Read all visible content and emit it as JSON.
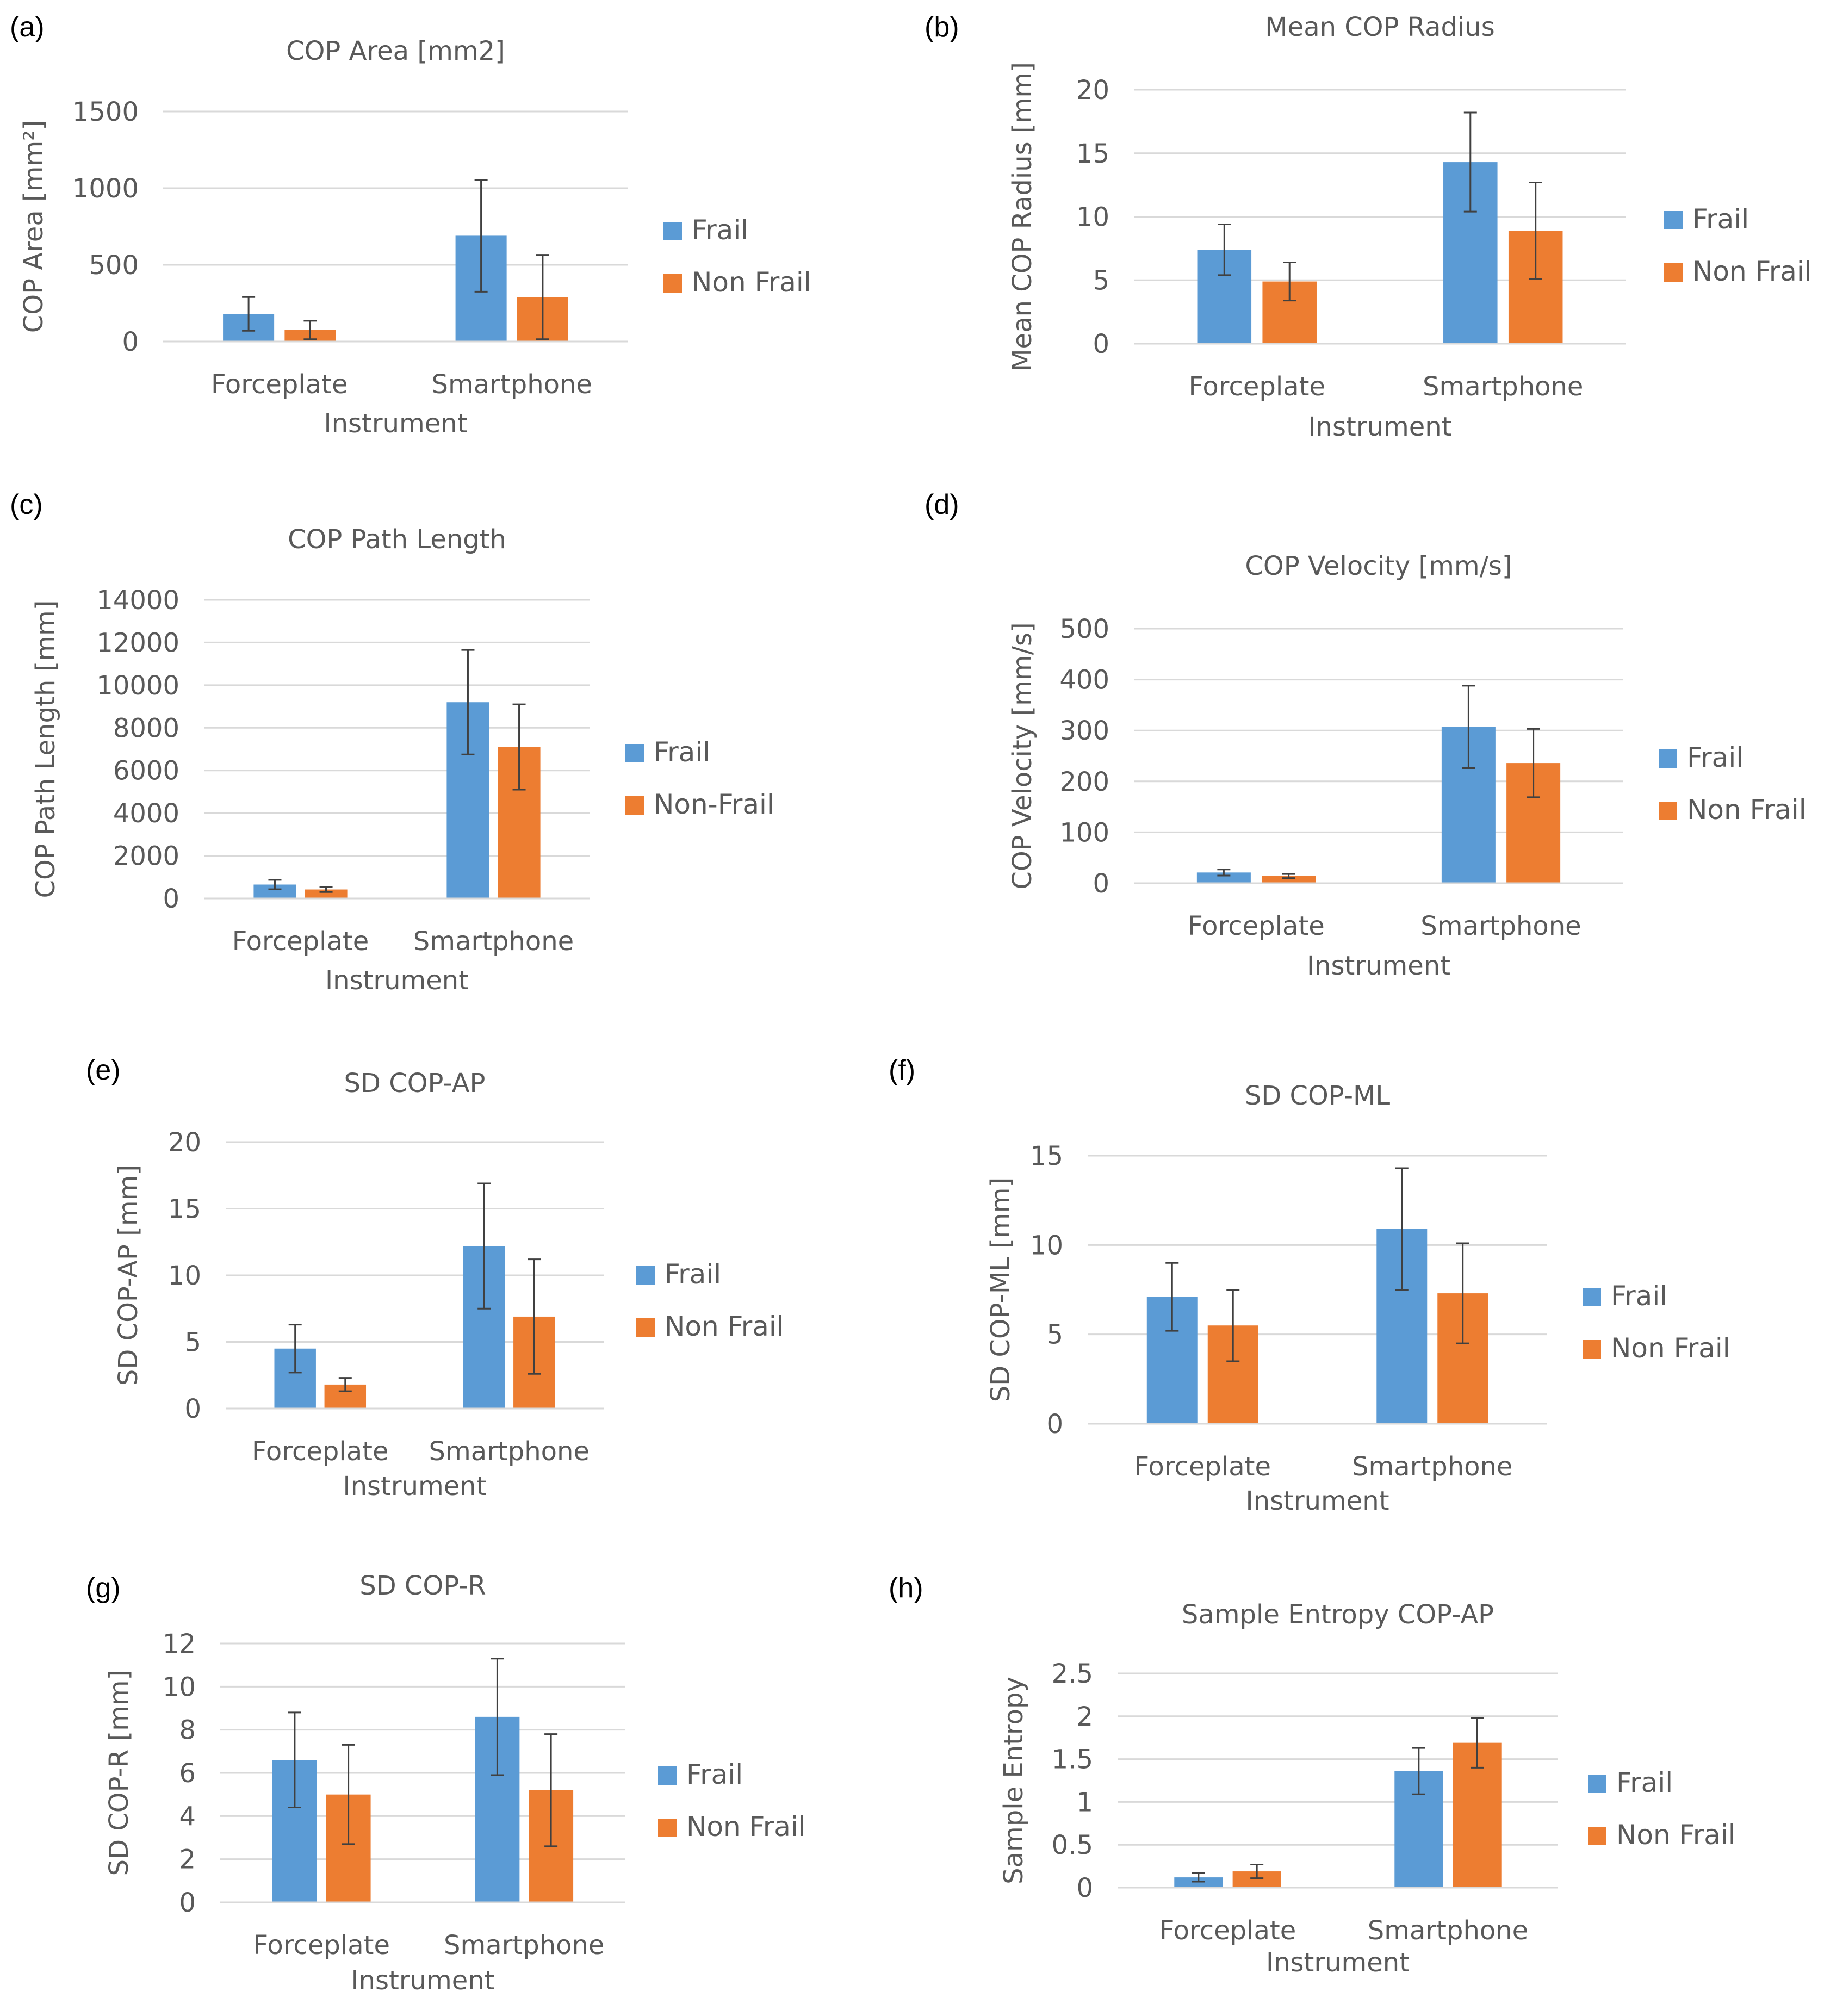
{
  "figure": {
    "description_labels": [
      "(a)",
      "(b)",
      "(c)",
      "(d)",
      "(e)",
      "(f)",
      "(g)",
      "(h)"
    ]
  },
  "colors": {
    "frail": "#5b9bd5",
    "non_frail": "#ed7d31",
    "text": "#595959",
    "grid": "#d9d9d9",
    "error": "#404040"
  },
  "chart_data": [
    {
      "id": "a",
      "label": "(a)",
      "type": "bar",
      "title": "COP Area [mm2]",
      "ylabel": "COP Area [mm²]",
      "xlabel": "Instrument",
      "categories": [
        "Forceplate",
        "Smartphone"
      ],
      "ylim": [
        0,
        1500
      ],
      "yticks": [
        0,
        500,
        1000,
        1500
      ],
      "grid": true,
      "legend": "right",
      "series": [
        {
          "name": "Frail",
          "values": [
            180,
            690
          ],
          "errors": [
            110,
            365
          ]
        },
        {
          "name": "Non Frail",
          "values": [
            75,
            290
          ],
          "errors": [
            60,
            275
          ]
        }
      ]
    },
    {
      "id": "b",
      "label": "(b)",
      "type": "bar",
      "title": "Mean COP Radius",
      "ylabel": "Mean COP Radius [mm]",
      "xlabel": "Instrument",
      "categories": [
        "Forceplate",
        "Smartphone"
      ],
      "ylim": [
        0,
        20
      ],
      "yticks": [
        0,
        5,
        10,
        15,
        20
      ],
      "grid": true,
      "legend": "right",
      "series": [
        {
          "name": "Frail",
          "values": [
            7.4,
            14.3
          ],
          "errors": [
            2.0,
            3.9
          ]
        },
        {
          "name": "Non Frail",
          "values": [
            4.9,
            8.9
          ],
          "errors": [
            1.5,
            3.8
          ]
        }
      ]
    },
    {
      "id": "c",
      "label": "(c)",
      "type": "bar",
      "title": "COP Path Length",
      "ylabel": "COP Path Length [mm]",
      "xlabel": "Instrument",
      "categories": [
        "Forceplate",
        "Smartphone"
      ],
      "ylim": [
        0,
        14000
      ],
      "yticks": [
        0,
        2000,
        4000,
        6000,
        8000,
        10000,
        12000,
        14000
      ],
      "grid": true,
      "legend": "right",
      "series": [
        {
          "name": "Frail",
          "values": [
            650,
            9200
          ],
          "errors": [
            220,
            2450
          ]
        },
        {
          "name": "Non-Frail",
          "values": [
            420,
            7100
          ],
          "errors": [
            120,
            2000
          ]
        }
      ]
    },
    {
      "id": "d",
      "label": "(d)",
      "type": "bar",
      "title": "COP Velocity [mm/s]",
      "ylabel": "COP Velocity [mm/s]",
      "xlabel": "Instrument",
      "categories": [
        "Forceplate",
        "Smartphone"
      ],
      "ylim": [
        0,
        500
      ],
      "yticks": [
        0,
        100,
        200,
        300,
        400,
        500
      ],
      "grid": true,
      "legend": "right",
      "series": [
        {
          "name": "Frail",
          "values": [
            21,
            307
          ],
          "errors": [
            6,
            81
          ]
        },
        {
          "name": "Non Frail",
          "values": [
            14,
            236
          ],
          "errors": [
            4,
            67
          ]
        }
      ]
    },
    {
      "id": "e",
      "label": "(e)",
      "type": "bar",
      "title": "SD COP-AP",
      "ylabel": "SD COP-AP  [mm]",
      "xlabel": "Instrument",
      "categories": [
        "Forceplate",
        "Smartphone"
      ],
      "ylim": [
        0,
        20
      ],
      "yticks": [
        0,
        5,
        10,
        15,
        20
      ],
      "grid": true,
      "legend": "right",
      "series": [
        {
          "name": "Frail",
          "values": [
            4.5,
            12.2
          ],
          "errors": [
            1.8,
            4.7
          ]
        },
        {
          "name": "Non Frail",
          "values": [
            1.8,
            6.9
          ],
          "errors": [
            0.5,
            4.3
          ]
        }
      ]
    },
    {
      "id": "f",
      "label": "(f)",
      "type": "bar",
      "title": "SD COP-ML",
      "ylabel": "SD COP-ML [mm]",
      "xlabel": "Instrument",
      "categories": [
        "Forceplate",
        "Smartphone"
      ],
      "ylim": [
        0,
        15
      ],
      "yticks": [
        0,
        5,
        10,
        15
      ],
      "grid": true,
      "legend": "right",
      "series": [
        {
          "name": "Frail",
          "values": [
            7.1,
            10.9
          ],
          "errors": [
            1.9,
            3.4
          ]
        },
        {
          "name": "Non Frail",
          "values": [
            5.5,
            7.3
          ],
          "errors": [
            2.0,
            2.8
          ]
        }
      ]
    },
    {
      "id": "g",
      "label": "(g)",
      "type": "bar",
      "title": "SD COP-R",
      "ylabel": "SD COP-R [mm]",
      "xlabel": "Instrument",
      "categories": [
        "Forceplate",
        "Smartphone"
      ],
      "ylim": [
        0,
        12
      ],
      "yticks": [
        0,
        2,
        4,
        6,
        8,
        10,
        12
      ],
      "grid": true,
      "legend": "right",
      "series": [
        {
          "name": "Frail",
          "values": [
            6.6,
            8.6
          ],
          "errors": [
            2.2,
            2.7
          ]
        },
        {
          "name": "Non Frail",
          "values": [
            5.0,
            5.2
          ],
          "errors": [
            2.3,
            2.6
          ]
        }
      ]
    },
    {
      "id": "h",
      "label": "(h)",
      "type": "bar",
      "title": "Sample Entropy COP-AP",
      "ylabel": "Sample Entropy",
      "xlabel": "Instrument",
      "categories": [
        "Forceplate",
        "Smartphone"
      ],
      "ylim": [
        0,
        2.5
      ],
      "yticks": [
        0,
        0.5,
        1,
        1.5,
        2,
        2.5
      ],
      "grid": true,
      "legend": "right",
      "series": [
        {
          "name": "Frail",
          "values": [
            0.12,
            1.36
          ],
          "errors": [
            0.05,
            0.27
          ]
        },
        {
          "name": "Non Frail",
          "values": [
            0.19,
            1.69
          ],
          "errors": [
            0.08,
            0.29
          ]
        }
      ]
    }
  ]
}
